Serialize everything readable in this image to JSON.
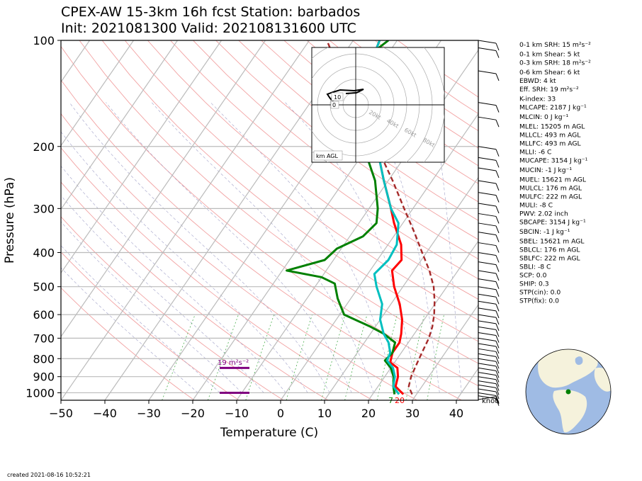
{
  "title_line1": "CPEX-AW 15-3km  16h fcst  Station: barbados",
  "title_line2": "Init: 2021081300  Valid: 202108131600 UTC",
  "footer": "created 2021-08-16 10:52:21",
  "chart_data": {
    "type": "line",
    "xlabel": "Temperature (C)",
    "ylabel": "Pressure (hPa)",
    "xlim": [
      -50,
      45
    ],
    "ylim": [
      1050,
      100
    ],
    "y_scale": "log",
    "xticks": [
      -50,
      -40,
      -30,
      -20,
      -10,
      0,
      10,
      20,
      30,
      40
    ],
    "yticks": [
      100,
      200,
      300,
      400,
      500,
      600,
      700,
      800,
      900,
      1000
    ],
    "skew": "skewed isotherms (Skew-T log-P)",
    "surface_labels": [
      {
        "text": "7",
        "color": "#008000"
      },
      {
        "text": "20",
        "color": "#ff0000"
      }
    ],
    "srh_label": "19 m²s⁻²",
    "series": [
      {
        "key": "temperature",
        "color": "#ff0000",
        "points": [
          [
            1010,
            27
          ],
          [
            960,
            24
          ],
          [
            900,
            23
          ],
          [
            850,
            21.5
          ],
          [
            820,
            19
          ],
          [
            770,
            18
          ],
          [
            720,
            18
          ],
          [
            680,
            17
          ],
          [
            620,
            15
          ],
          [
            560,
            12
          ],
          [
            500,
            8
          ],
          [
            450,
            5
          ],
          [
            420,
            5.5
          ],
          [
            380,
            3
          ],
          [
            330,
            -2
          ],
          [
            300,
            -5
          ],
          [
            250,
            -11
          ],
          [
            200,
            -18
          ],
          [
            150,
            -27
          ],
          [
            130,
            -31
          ],
          [
            110,
            -33
          ],
          [
            100,
            -34
          ]
        ]
      },
      {
        "key": "dewpoint",
        "color": "#008000",
        "points": [
          [
            1010,
            25
          ],
          [
            960,
            23.5
          ],
          [
            900,
            22
          ],
          [
            850,
            20
          ],
          [
            810,
            17.5
          ],
          [
            770,
            18
          ],
          [
            720,
            17
          ],
          [
            680,
            13
          ],
          [
            650,
            9
          ],
          [
            600,
            1
          ],
          [
            540,
            -3
          ],
          [
            490,
            -6
          ],
          [
            470,
            -10
          ],
          [
            450,
            -19
          ],
          [
            420,
            -12
          ],
          [
            390,
            -11
          ],
          [
            360,
            -7
          ],
          [
            330,
            -6
          ],
          [
            300,
            -8
          ],
          [
            250,
            -13
          ],
          [
            200,
            -21
          ],
          [
            160,
            -28
          ],
          [
            130,
            -35
          ],
          [
            110,
            -34
          ],
          [
            100,
            -32
          ]
        ]
      },
      {
        "key": "wetbulb",
        "color": "#00bfbf",
        "points": [
          [
            1010,
            26
          ],
          [
            960,
            23.5
          ],
          [
            900,
            22.3
          ],
          [
            850,
            20.5
          ],
          [
            810,
            18
          ],
          [
            770,
            17.5
          ],
          [
            720,
            15.5
          ],
          [
            680,
            13
          ],
          [
            620,
            10
          ],
          [
            560,
            8
          ],
          [
            500,
            4
          ],
          [
            460,
            1.5
          ],
          [
            420,
            2.5
          ],
          [
            380,
            2
          ],
          [
            330,
            -1
          ],
          [
            300,
            -5
          ],
          [
            250,
            -11
          ],
          [
            200,
            -18
          ],
          [
            150,
            -27
          ],
          [
            130,
            -31
          ],
          [
            110,
            -33
          ],
          [
            100,
            -34
          ]
        ]
      },
      {
        "key": "parcel",
        "color": "#a52a2a",
        "dashed": true,
        "points": [
          [
            1010,
            29
          ],
          [
            960,
            27
          ],
          [
            900,
            26
          ],
          [
            850,
            25.5
          ],
          [
            800,
            25
          ],
          [
            750,
            24.5
          ],
          [
            700,
            24
          ],
          [
            650,
            23
          ],
          [
            600,
            21.5
          ],
          [
            550,
            19.5
          ],
          [
            500,
            17
          ],
          [
            450,
            13.5
          ],
          [
            400,
            9
          ],
          [
            350,
            4
          ],
          [
            300,
            -2
          ],
          [
            250,
            -9
          ],
          [
            200,
            -18
          ],
          [
            150,
            -30
          ],
          [
            120,
            -39
          ],
          [
            100,
            -46
          ]
        ]
      }
    ],
    "srh_bar_pressures": [
      850,
      1000
    ],
    "hodograph": {
      "label": "km AGL",
      "rings": [
        "20kt",
        "40kt",
        "60kt",
        "80kt"
      ],
      "height_labels": [
        "10",
        "0"
      ]
    },
    "wind_label": "knot",
    "indices": [
      {
        "text": "0-1 km SRH: 15 m²s⁻²"
      },
      {
        "text": "0-1 km Shear: 5 kt"
      },
      {
        "text": "0-3 km SRH: 18 m²s⁻²"
      },
      {
        "text": "0-6 km Shear: 6 kt"
      },
      {
        "text": "EBWD: 4 kt"
      },
      {
        "text": "Eff. SRH: 19 m²s⁻²"
      },
      {
        "text": "K-index: 33"
      },
      {
        "text": "MLCAPE: 2187 J kg⁻¹"
      },
      {
        "text": "MLCIN: 0 J kg⁻¹"
      },
      {
        "text": "MLEL: 15205 m AGL"
      },
      {
        "text": "MLLCL: 493 m AGL"
      },
      {
        "text": "MLLFC: 493 m AGL"
      },
      {
        "text": "MLLI: -6 C"
      },
      {
        "text": "MUCAPE: 3154 J kg⁻¹"
      },
      {
        "text": "MUCIN: -1 J kg⁻¹"
      },
      {
        "text": "MUEL: 15621 m AGL"
      },
      {
        "text": "MULCL: 176 m AGL"
      },
      {
        "text": "MULFC: 222 m AGL"
      },
      {
        "text": "MULI: -8 C"
      },
      {
        "text": "PWV: 2.02 inch"
      },
      {
        "text": "SBCAPE: 3154 J kg⁻¹"
      },
      {
        "text": "SBCIN: -1 J kg⁻¹"
      },
      {
        "text": "SBEL: 15621 m AGL"
      },
      {
        "text": "SBLCL: 176 m AGL"
      },
      {
        "text": "SBLFC: 222 m AGL"
      },
      {
        "text": "SBLI: -8 C"
      },
      {
        "text": "SCP: 0.0"
      },
      {
        "text": "SHIP: 0.3"
      },
      {
        "text": "STP(cin): 0.0"
      },
      {
        "text": "STP(fix): 0.0"
      }
    ]
  }
}
